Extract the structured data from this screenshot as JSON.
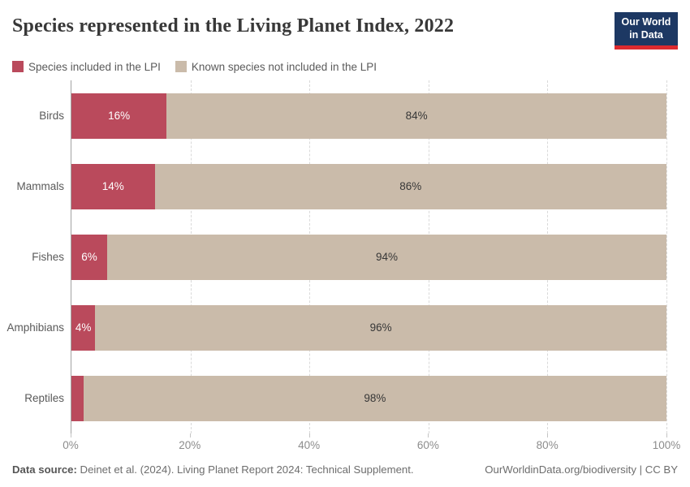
{
  "header": {
    "title": "Species represented in the Living Planet Index, 2022",
    "logo_line1": "Our World",
    "logo_line2": "in Data",
    "logo_bg_color": "#1d3863",
    "logo_accent_color": "#dc2a2f"
  },
  "legend": {
    "items": [
      {
        "label": "Species included in the LPI",
        "color": "#ba4a5c"
      },
      {
        "label": "Known species not included in the LPI",
        "color": "#cabbaa"
      }
    ]
  },
  "chart_data": {
    "type": "bar",
    "orientation": "horizontal",
    "stacked": true,
    "title": "Species represented in the Living Planet Index, 2022",
    "categories": [
      "Birds",
      "Mammals",
      "Fishes",
      "Amphibians",
      "Reptiles"
    ],
    "series": [
      {
        "name": "Species included in the LPI",
        "color": "#ba4a5c",
        "values": [
          16,
          14,
          6,
          4,
          2
        ]
      },
      {
        "name": "Known species not included in the LPI",
        "color": "#cabbaa",
        "values": [
          84,
          86,
          94,
          96,
          98
        ]
      }
    ],
    "xlim": [
      0,
      100
    ],
    "x_tick_positions": [
      0,
      20,
      40,
      60,
      80,
      100
    ],
    "x_ticks": [
      "0%",
      "20%",
      "40%",
      "60%",
      "80%",
      "100%"
    ],
    "grid": "dashed-vertical",
    "legend_position": "top",
    "rows": [
      {
        "label": "Birds",
        "included": 16,
        "included_label": "16%",
        "rest_label": "84%"
      },
      {
        "label": "Mammals",
        "included": 14,
        "included_label": "14%",
        "rest_label": "86%"
      },
      {
        "label": "Fishes",
        "included": 6,
        "included_label": "6%",
        "rest_label": "94%"
      },
      {
        "label": "Amphibians",
        "included": 4,
        "included_label": "4%",
        "rest_label": "96%"
      },
      {
        "label": "Reptiles",
        "included": 2,
        "included_label": "",
        "rest_label": "98%"
      }
    ],
    "colors": {
      "included": "#ba4a5c",
      "rest": "#cabbaa"
    }
  },
  "footer": {
    "source_prefix": "Data source:",
    "source_text": " Deinet et al. (2024). Living Planet Report 2024: Technical Supplement.",
    "credit": "OurWorldinData.org/biodiversity | CC BY"
  }
}
